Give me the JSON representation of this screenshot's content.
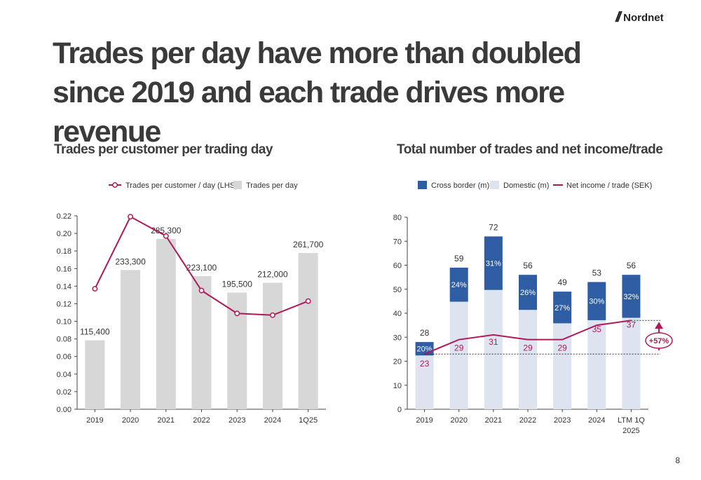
{
  "brand": {
    "name": "Nordnet",
    "mark": "//"
  },
  "headline": "Trades per day have more than doubled since 2019 and each trade drives more revenue",
  "page_number": "8",
  "colors": {
    "bar_gray": "#d7d7d7",
    "line_magenta": "#b0185a",
    "cross_border": "#2e5da4",
    "domestic": "#dde4f0",
    "text": "#333333"
  },
  "chart_data": [
    {
      "type": "bar",
      "title": "Trades per customer per trading day",
      "categories": [
        "2019",
        "2020",
        "2021",
        "2022",
        "2023",
        "2024",
        "1Q25"
      ],
      "series": [
        {
          "name": "Trades per day",
          "kind": "bar",
          "axis": "right",
          "values": [
            115400,
            233300,
            285300,
            223100,
            195500,
            212000,
            261700
          ],
          "labels": [
            "115,400",
            "233,300",
            "285,300",
            "223,100",
            "195,500",
            "212,000",
            "261,700"
          ]
        },
        {
          "name": "Trades per customer / day (LHS)",
          "kind": "line",
          "axis": "left",
          "values": [
            0.137,
            0.219,
            0.197,
            0.135,
            0.109,
            0.107,
            0.123
          ]
        }
      ],
      "ylim": [
        0,
        0.22
      ],
      "yticks": [
        "0.00",
        "0.02",
        "0.04",
        "0.06",
        "0.08",
        "0.10",
        "0.12",
        "0.14",
        "0.16",
        "0.18",
        "0.20",
        "0.22"
      ],
      "y2lim": [
        0,
        324000
      ],
      "legend": "top",
      "grid": false
    },
    {
      "type": "bar",
      "title": "Total number of trades and net income/trade",
      "categories": [
        "2019",
        "2020",
        "2021",
        "2022",
        "2023",
        "2024",
        "LTM 1Q\n2025"
      ],
      "series": [
        {
          "name": "Cross border (m)",
          "kind": "stacked_bar",
          "values": [
            5.6,
            14.2,
            22.3,
            14.6,
            13.2,
            15.9,
            17.9
          ],
          "share_labels": [
            "20%",
            "24%",
            "31%",
            "26%",
            "27%",
            "30%",
            "32%"
          ]
        },
        {
          "name": "Domestic (m)",
          "kind": "stacked_bar",
          "values": [
            22.4,
            44.8,
            49.7,
            41.4,
            35.8,
            37.1,
            38.1
          ]
        },
        {
          "name": "Net income / trade (SEK)",
          "kind": "line",
          "values": [
            23,
            29,
            31,
            29,
            29,
            35,
            37
          ]
        }
      ],
      "totals": [
        "28",
        "59",
        "72",
        "56",
        "49",
        "53",
        "56"
      ],
      "ylim": [
        0,
        80
      ],
      "yticks": [
        "0",
        "10",
        "20",
        "30",
        "40",
        "50",
        "60",
        "70",
        "80"
      ],
      "annotation": "+57%",
      "legend": "top",
      "grid": false
    }
  ]
}
